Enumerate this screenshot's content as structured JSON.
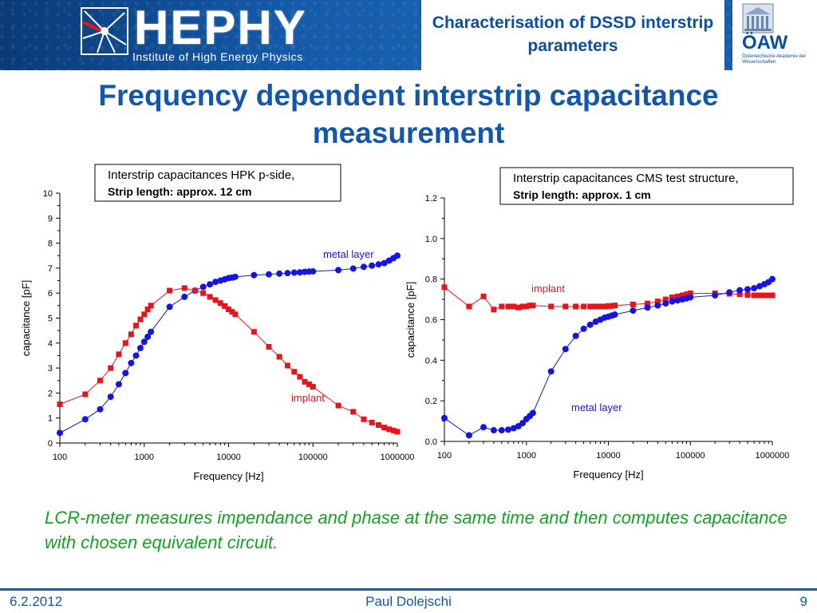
{
  "header": {
    "logo_name": "HEPHY",
    "logo_subtitle": "Institute of High Energy Physics",
    "title": "Characterisation of DSSD interstrip parameters",
    "oaw_name": "ÖAW",
    "oaw_subtitle": "Österreichische Akademie der Wissenschaften"
  },
  "slide_title": "Frequency dependent interstrip capacitance measurement",
  "note": "LCR-meter measures impendance and phase at the same time and then computes capacitance with chosen equivalent circuit.",
  "footer": {
    "date": "6.2.2012",
    "author": "Paul Dolejschi",
    "page": "9"
  },
  "colors": {
    "implant": "#e8141c",
    "metal": "#1414e6",
    "accent": "#1257aa",
    "note": "#11a321"
  },
  "chart_data": [
    {
      "type": "scatter",
      "box_title": "Interstrip capacitances HPK p-side,",
      "box_subtitle": "Strip length: approx. 12 cm",
      "xlabel": "Frequency [Hz]",
      "ylabel": "capacitance [pF]",
      "xscale": "log",
      "xlim": [
        100,
        1000000
      ],
      "ylim": [
        0,
        10
      ],
      "x_ticks": [
        "100",
        "1000",
        "10000",
        "100000",
        "1000000"
      ],
      "y_ticks": [
        "0",
        "1",
        "2",
        "3",
        "4",
        "5",
        "6",
        "7",
        "8",
        "9",
        "10"
      ],
      "series": [
        {
          "name": "metal layer",
          "x": [
            100,
            200,
            300,
            400,
            500,
            600,
            700,
            800,
            900,
            1000,
            1100,
            1200,
            2000,
            3000,
            4000,
            5000,
            6000,
            7000,
            8000,
            9000,
            10000,
            11000,
            12000,
            20000,
            30000,
            40000,
            50000,
            60000,
            70000,
            80000,
            90000,
            100000,
            200000,
            300000,
            400000,
            500000,
            600000,
            700000,
            800000,
            900000,
            1000000
          ],
          "y": [
            0.4,
            0.95,
            1.35,
            1.85,
            2.35,
            2.8,
            3.2,
            3.5,
            3.8,
            4.05,
            4.25,
            4.45,
            5.45,
            5.85,
            6.1,
            6.25,
            6.35,
            6.45,
            6.5,
            6.55,
            6.6,
            6.62,
            6.65,
            6.72,
            6.75,
            6.78,
            6.8,
            6.82,
            6.83,
            6.85,
            6.86,
            6.87,
            6.92,
            6.98,
            7.05,
            7.1,
            7.15,
            7.2,
            7.3,
            7.4,
            7.5
          ]
        },
        {
          "name": "implant",
          "x": [
            100,
            200,
            300,
            400,
            500,
            600,
            700,
            800,
            900,
            1000,
            1100,
            1200,
            2000,
            3000,
            4000,
            5000,
            6000,
            7000,
            8000,
            9000,
            10000,
            11000,
            12000,
            20000,
            30000,
            40000,
            50000,
            60000,
            70000,
            80000,
            90000,
            100000,
            200000,
            300000,
            400000,
            500000,
            600000,
            700000,
            800000,
            900000,
            1000000
          ],
          "y": [
            1.55,
            1.95,
            2.5,
            3.0,
            3.55,
            4.0,
            4.35,
            4.7,
            4.95,
            5.15,
            5.35,
            5.5,
            6.1,
            6.2,
            6.1,
            6.0,
            5.85,
            5.72,
            5.6,
            5.48,
            5.35,
            5.25,
            5.15,
            4.45,
            3.85,
            3.45,
            3.1,
            2.85,
            2.65,
            2.45,
            2.35,
            2.25,
            1.5,
            1.25,
            0.95,
            0.82,
            0.72,
            0.62,
            0.55,
            0.5,
            0.45
          ]
        }
      ]
    },
    {
      "type": "scatter",
      "box_title": "Interstrip capacitances CMS test structure,",
      "box_subtitle": "Strip length: approx. 1 cm",
      "xlabel": "Frequency [Hz]",
      "ylabel": "capacitance [pF]",
      "xscale": "log",
      "xlim": [
        100,
        1000000
      ],
      "ylim": [
        0,
        1.2
      ],
      "x_ticks": [
        "100",
        "1000",
        "10000",
        "100000",
        "1000000"
      ],
      "y_ticks": [
        "0.0",
        "0.2",
        "0.4",
        "0.6",
        "0.8",
        "1.0",
        "1.2"
      ],
      "series": [
        {
          "name": "implant",
          "x": [
            100,
            200,
            300,
            400,
            500,
            600,
            700,
            800,
            900,
            1000,
            1100,
            1200,
            2000,
            3000,
            4000,
            5000,
            6000,
            7000,
            8000,
            9000,
            10000,
            11000,
            12000,
            20000,
            30000,
            40000,
            50000,
            60000,
            70000,
            80000,
            90000,
            100000,
            200000,
            300000,
            400000,
            500000,
            600000,
            700000,
            800000,
            900000,
            1000000
          ],
          "y": [
            0.76,
            0.665,
            0.715,
            0.65,
            0.665,
            0.665,
            0.665,
            0.66,
            0.665,
            0.665,
            0.67,
            0.67,
            0.665,
            0.665,
            0.665,
            0.665,
            0.665,
            0.665,
            0.665,
            0.665,
            0.667,
            0.668,
            0.67,
            0.675,
            0.68,
            0.69,
            0.7,
            0.71,
            0.715,
            0.72,
            0.725,
            0.73,
            0.73,
            0.728,
            0.725,
            0.722,
            0.72,
            0.72,
            0.72,
            0.72,
            0.72
          ]
        },
        {
          "name": "metal layer",
          "x": [
            100,
            200,
            300,
            400,
            500,
            600,
            700,
            800,
            900,
            1000,
            1100,
            1200,
            2000,
            3000,
            4000,
            5000,
            6000,
            7000,
            8000,
            9000,
            10000,
            11000,
            12000,
            20000,
            30000,
            40000,
            50000,
            60000,
            70000,
            80000,
            90000,
            100000,
            200000,
            300000,
            400000,
            500000,
            600000,
            700000,
            800000,
            900000,
            1000000
          ],
          "y": [
            0.115,
            0.03,
            0.07,
            0.055,
            0.055,
            0.058,
            0.065,
            0.075,
            0.09,
            0.11,
            0.125,
            0.14,
            0.345,
            0.455,
            0.52,
            0.555,
            0.575,
            0.59,
            0.6,
            0.61,
            0.615,
            0.62,
            0.625,
            0.645,
            0.66,
            0.67,
            0.68,
            0.69,
            0.695,
            0.7,
            0.705,
            0.71,
            0.72,
            0.735,
            0.745,
            0.75,
            0.755,
            0.765,
            0.775,
            0.785,
            0.8
          ]
        }
      ]
    }
  ]
}
